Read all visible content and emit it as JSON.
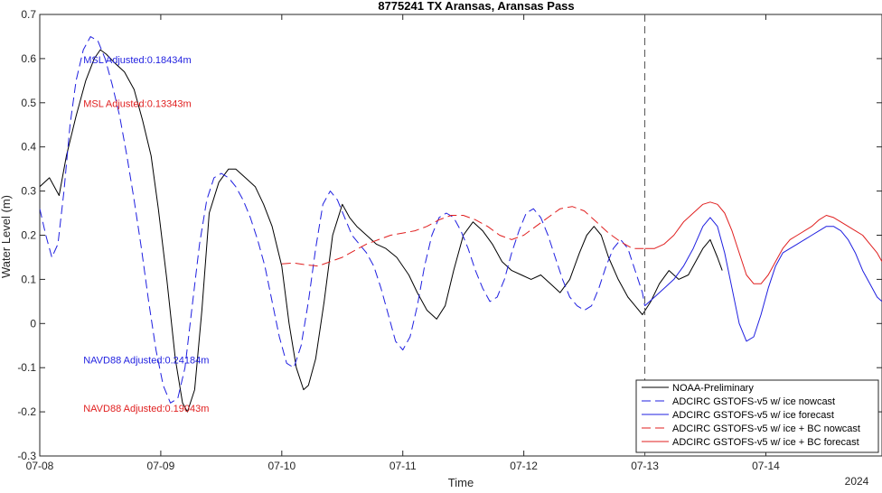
{
  "chart_data": {
    "type": "line",
    "title": "8775241 TX Aransas, Aransas Pass",
    "xlabel": "Time",
    "ylabel": "Water Level (m)",
    "year_label": "2024",
    "x_unit": "days (07-08 00:00 = 0)",
    "xlim": [
      0,
      6.96
    ],
    "ylim": [
      -0.3,
      0.7
    ],
    "x_ticks": [
      {
        "x": 0,
        "label": "07-08"
      },
      {
        "x": 1,
        "label": "07-09"
      },
      {
        "x": 2,
        "label": "07-10"
      },
      {
        "x": 3,
        "label": "07-11"
      },
      {
        "x": 4,
        "label": "07-12"
      },
      {
        "x": 5,
        "label": "07-13"
      },
      {
        "x": 6,
        "label": "07-14"
      }
    ],
    "y_ticks": [
      {
        "y": -0.3,
        "label": "-0.3"
      },
      {
        "y": -0.2,
        "label": "-0.2"
      },
      {
        "y": -0.1,
        "label": "-0.1"
      },
      {
        "y": 0,
        "label": "0"
      },
      {
        "y": 0.1,
        "label": "0.1"
      },
      {
        "y": 0.2,
        "label": "0.2"
      },
      {
        "y": 0.3,
        "label": "0.3"
      },
      {
        "y": 0.4,
        "label": "0.4"
      },
      {
        "y": 0.5,
        "label": "0.5"
      },
      {
        "y": 0.6,
        "label": "0.6"
      },
      {
        "y": 0.7,
        "label": "0.7"
      }
    ],
    "forecast_start_x": 5.0,
    "annotations": [
      {
        "text": "MSL Adjusted:0.18434m",
        "x": 0.36,
        "y": 0.59,
        "color": "#1f1fe0"
      },
      {
        "text": "MSL Adjusted:0.13343m",
        "x": 0.36,
        "y": 0.49,
        "color": "#e01f1f"
      },
      {
        "text": "NAVD88 Adjusted:0.24184m",
        "x": 0.36,
        "y": -0.09,
        "color": "#1f1fe0"
      },
      {
        "text": "NAVD88 Adjusted:0.19043m",
        "x": 0.36,
        "y": -0.2,
        "color": "#e01f1f"
      }
    ],
    "legend_position": "bottom-right",
    "series": [
      {
        "name": "NOAA-Preliminary",
        "color": "#000000",
        "dash": "solid",
        "x": [
          0.0,
          0.08,
          0.16,
          0.22,
          0.3,
          0.38,
          0.45,
          0.5,
          0.55,
          0.62,
          0.7,
          0.78,
          0.85,
          0.92,
          0.98,
          1.05,
          1.12,
          1.18,
          1.22,
          1.28,
          1.34,
          1.4,
          1.48,
          1.56,
          1.62,
          1.7,
          1.78,
          1.85,
          1.92,
          2.0,
          2.06,
          2.12,
          2.18,
          2.22,
          2.28,
          2.35,
          2.42,
          2.5,
          2.56,
          2.62,
          2.7,
          2.78,
          2.86,
          2.95,
          3.05,
          3.12,
          3.2,
          3.28,
          3.35,
          3.42,
          3.5,
          3.58,
          3.66,
          3.74,
          3.82,
          3.9,
          3.98,
          4.06,
          4.14,
          4.22,
          4.3,
          4.38,
          4.46,
          4.52,
          4.58,
          4.64,
          4.7,
          4.78,
          4.86,
          4.92,
          4.98,
          5.05,
          5.12,
          5.2,
          5.28,
          5.36,
          5.42,
          5.48,
          5.54,
          5.6,
          5.64
        ],
        "y": [
          0.31,
          0.33,
          0.29,
          0.38,
          0.47,
          0.55,
          0.6,
          0.62,
          0.61,
          0.59,
          0.57,
          0.53,
          0.46,
          0.38,
          0.26,
          0.1,
          -0.08,
          -0.18,
          -0.2,
          -0.15,
          0.03,
          0.25,
          0.32,
          0.35,
          0.35,
          0.33,
          0.31,
          0.27,
          0.22,
          0.13,
          0.0,
          -0.1,
          -0.15,
          -0.14,
          -0.08,
          0.05,
          0.2,
          0.27,
          0.24,
          0.22,
          0.2,
          0.18,
          0.17,
          0.15,
          0.11,
          0.07,
          0.03,
          0.01,
          0.04,
          0.12,
          0.2,
          0.23,
          0.21,
          0.18,
          0.14,
          0.12,
          0.11,
          0.1,
          0.11,
          0.09,
          0.07,
          0.1,
          0.16,
          0.2,
          0.22,
          0.2,
          0.15,
          0.1,
          0.06,
          0.04,
          0.02,
          0.05,
          0.09,
          0.12,
          0.1,
          0.11,
          0.14,
          0.17,
          0.19,
          0.15,
          0.12
        ]
      },
      {
        "name": "ADCIRC GSTOFS-v5 w/ ice nowcast",
        "color": "#1f1fe0",
        "dash": "dashed",
        "x": [
          0.0,
          0.05,
          0.1,
          0.15,
          0.2,
          0.25,
          0.3,
          0.36,
          0.42,
          0.48,
          0.54,
          0.6,
          0.66,
          0.72,
          0.78,
          0.84,
          0.9,
          0.96,
          1.02,
          1.08,
          1.14,
          1.2,
          1.26,
          1.32,
          1.38,
          1.44,
          1.5,
          1.56,
          1.62,
          1.68,
          1.74,
          1.8,
          1.86,
          1.92,
          1.98,
          2.04,
          2.1,
          2.16,
          2.22,
          2.28,
          2.34,
          2.4,
          2.46,
          2.52,
          2.58,
          2.64,
          2.7,
          2.76,
          2.82,
          2.88,
          2.94,
          3.0,
          3.06,
          3.12,
          3.18,
          3.24,
          3.3,
          3.36,
          3.42,
          3.48,
          3.54,
          3.6,
          3.66,
          3.72,
          3.78,
          3.84,
          3.9,
          3.96,
          4.02,
          4.08,
          4.14,
          4.2,
          4.26,
          4.32,
          4.38,
          4.44,
          4.5,
          4.56,
          4.62,
          4.68,
          4.74,
          4.8,
          4.86,
          4.92,
          4.98,
          5.0
        ],
        "y": [
          0.26,
          0.2,
          0.15,
          0.18,
          0.3,
          0.45,
          0.55,
          0.62,
          0.65,
          0.64,
          0.6,
          0.54,
          0.47,
          0.38,
          0.28,
          0.17,
          0.05,
          -0.06,
          -0.14,
          -0.18,
          -0.17,
          -0.1,
          0.04,
          0.18,
          0.28,
          0.33,
          0.34,
          0.33,
          0.31,
          0.28,
          0.24,
          0.19,
          0.13,
          0.05,
          -0.03,
          -0.09,
          -0.1,
          -0.05,
          0.05,
          0.17,
          0.27,
          0.3,
          0.28,
          0.24,
          0.2,
          0.18,
          0.16,
          0.13,
          0.08,
          0.02,
          -0.04,
          -0.06,
          -0.03,
          0.04,
          0.13,
          0.2,
          0.24,
          0.25,
          0.24,
          0.21,
          0.17,
          0.12,
          0.08,
          0.05,
          0.06,
          0.1,
          0.16,
          0.21,
          0.25,
          0.26,
          0.24,
          0.2,
          0.15,
          0.1,
          0.06,
          0.04,
          0.03,
          0.04,
          0.08,
          0.13,
          0.17,
          0.19,
          0.17,
          0.12,
          0.07,
          0.04
        ]
      },
      {
        "name": "ADCIRC GSTOFS-v5 w/ ice forecast",
        "color": "#1f1fe0",
        "dash": "solid",
        "x": [
          5.0,
          5.08,
          5.16,
          5.24,
          5.32,
          5.4,
          5.48,
          5.54,
          5.6,
          5.66,
          5.72,
          5.78,
          5.84,
          5.9,
          5.96,
          6.02,
          6.08,
          6.14,
          6.2,
          6.26,
          6.32,
          6.38,
          6.44,
          6.5,
          6.56,
          6.62,
          6.68,
          6.74,
          6.8,
          6.86,
          6.92,
          6.96
        ],
        "y": [
          0.04,
          0.06,
          0.08,
          0.1,
          0.13,
          0.17,
          0.22,
          0.24,
          0.22,
          0.16,
          0.08,
          0.0,
          -0.04,
          -0.03,
          0.02,
          0.08,
          0.13,
          0.16,
          0.17,
          0.18,
          0.19,
          0.2,
          0.21,
          0.22,
          0.22,
          0.21,
          0.19,
          0.16,
          0.12,
          0.09,
          0.06,
          0.05
        ]
      },
      {
        "name": "ADCIRC GSTOFS-v5 w/ ice + BC nowcast",
        "color": "#e01f1f",
        "dash": "dashed",
        "x": [
          2.0,
          2.1,
          2.2,
          2.3,
          2.4,
          2.5,
          2.6,
          2.7,
          2.8,
          2.9,
          3.0,
          3.1,
          3.2,
          3.3,
          3.4,
          3.5,
          3.6,
          3.7,
          3.8,
          3.9,
          4.0,
          4.1,
          4.2,
          4.3,
          4.4,
          4.5,
          4.6,
          4.7,
          4.8,
          4.9,
          5.0
        ],
        "y": [
          0.135,
          0.137,
          0.133,
          0.13,
          0.14,
          0.15,
          0.165,
          0.18,
          0.19,
          0.2,
          0.205,
          0.21,
          0.22,
          0.235,
          0.245,
          0.245,
          0.235,
          0.22,
          0.2,
          0.19,
          0.2,
          0.22,
          0.24,
          0.26,
          0.265,
          0.255,
          0.23,
          0.205,
          0.185,
          0.17,
          0.17
        ]
      },
      {
        "name": "ADCIRC GSTOFS-v5 w/ ice + BC forecast",
        "color": "#e01f1f",
        "dash": "solid",
        "x": [
          5.0,
          5.08,
          5.16,
          5.24,
          5.32,
          5.4,
          5.48,
          5.54,
          5.6,
          5.66,
          5.72,
          5.78,
          5.84,
          5.9,
          5.96,
          6.02,
          6.08,
          6.14,
          6.2,
          6.26,
          6.32,
          6.38,
          6.44,
          6.5,
          6.56,
          6.62,
          6.68,
          6.74,
          6.8,
          6.86,
          6.92,
          6.96
        ],
        "y": [
          0.17,
          0.17,
          0.18,
          0.2,
          0.23,
          0.25,
          0.27,
          0.275,
          0.27,
          0.25,
          0.21,
          0.16,
          0.11,
          0.09,
          0.09,
          0.11,
          0.14,
          0.17,
          0.19,
          0.2,
          0.21,
          0.22,
          0.235,
          0.245,
          0.24,
          0.23,
          0.22,
          0.21,
          0.2,
          0.18,
          0.16,
          0.14
        ]
      }
    ]
  }
}
